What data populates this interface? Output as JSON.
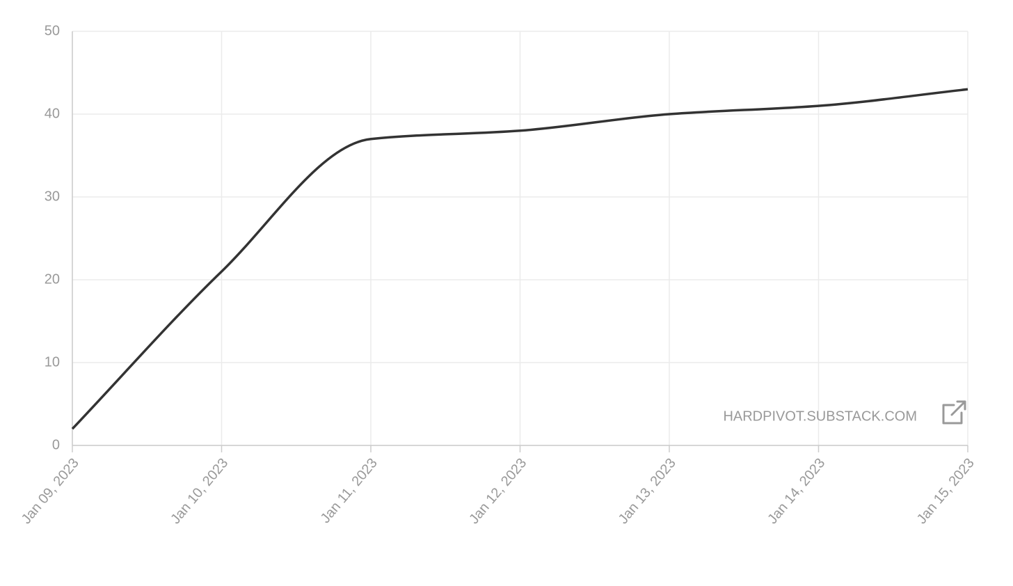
{
  "chart_data": {
    "type": "line",
    "categories": [
      "Jan 09, 2023",
      "Jan 10, 2023",
      "Jan 11, 2023",
      "Jan 12, 2023",
      "Jan 13, 2023",
      "Jan 14, 2023",
      "Jan 15, 2023"
    ],
    "series": [
      {
        "color": "#333333",
        "values": [
          2,
          21,
          37,
          38,
          40,
          41,
          43
        ]
      }
    ],
    "ylim": [
      0,
      50
    ],
    "yticks": [
      0,
      10,
      20,
      30,
      40,
      50
    ],
    "grid": true,
    "annotation": "HARDPIVOT.SUBSTACK.COM"
  }
}
